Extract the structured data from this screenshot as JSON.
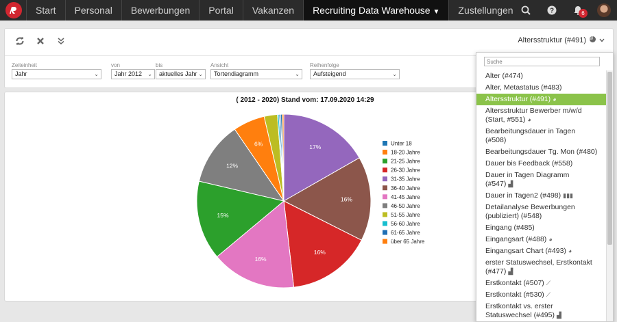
{
  "nav": {
    "items": [
      "Start",
      "Personal",
      "Bewerbungen",
      "Portal",
      "Vakanzen",
      "Recruiting Data Warehouse",
      "Zustellungen"
    ],
    "active_index": 5,
    "notification_count": "6"
  },
  "toolbar": {
    "view_label": "Altersstruktur (#491)"
  },
  "filters": {
    "zeiteinheit": {
      "label": "Zeiteinheit",
      "value": "Jahr"
    },
    "von": {
      "label": "von",
      "value": "Jahr 2012"
    },
    "bis": {
      "label": "bis",
      "value": "aktuelles Jahr"
    },
    "ansicht": {
      "label": "Ansicht",
      "value": "Tortendiagramm"
    },
    "reihenfolge": {
      "label": "Reihenfolge",
      "value": "Aufsteigend"
    }
  },
  "chart_data": {
    "type": "pie",
    "title": "( 2012 - 2020) Stand vom: 17.09.2020 14:29",
    "slices": [
      {
        "label": "Unter 18",
        "value": 0.3,
        "color": "#1f77b4",
        "shown": ""
      },
      {
        "label": "18-20 Jahre",
        "value": 0.3,
        "color": "#ff7f0e",
        "shown": ""
      },
      {
        "label": "21-25 Jahre",
        "value": 15,
        "color": "#2ca02c",
        "shown": "15%"
      },
      {
        "label": "26-30 Jahre",
        "value": 16,
        "color": "#d62728",
        "shown": "16%"
      },
      {
        "label": "31-35 Jahre",
        "value": 17,
        "color": "#9467bd",
        "shown": "17%"
      },
      {
        "label": "36-40 Jahre",
        "value": 16,
        "color": "#8c564b",
        "shown": "16%"
      },
      {
        "label": "41-45 Jahre",
        "value": 16,
        "color": "#e377c2",
        "shown": "16%"
      },
      {
        "label": "46-50 Jahre",
        "value": 12,
        "color": "#7f7f7f",
        "shown": "12%"
      },
      {
        "label": "51-55 Jahre",
        "value": 2.5,
        "color": "#bcbd22",
        "shown": ""
      },
      {
        "label": "56-60 Jahre",
        "value": 0.3,
        "color": "#17becf",
        "shown": ""
      },
      {
        "label": "61-65 Jahre",
        "value": 0.3,
        "color": "#1f6fb4",
        "shown": ""
      },
      {
        "label": "über 65 Jahre",
        "value": 6,
        "color": "#ff7f0e",
        "shown": "6%"
      }
    ],
    "draw_order": [
      4,
      5,
      3,
      6,
      2,
      7,
      11,
      8,
      9,
      10,
      0,
      1
    ]
  },
  "dropdown": {
    "search_placeholder": "Suche",
    "items": [
      {
        "label": "Alter (#474)",
        "icon": ""
      },
      {
        "label": "Alter, Metastatus (#483)",
        "icon": ""
      },
      {
        "label": "Altersstruktur (#491)",
        "icon": "pie-icon",
        "selected": true
      },
      {
        "label": "Altersstruktur Bewerber m/w/d (Start, #551)",
        "icon": "pie-icon"
      },
      {
        "label": "Bearbeitungsdauer in Tagen (#508)",
        "icon": ""
      },
      {
        "label": "Bearbeitungsdauer Tg. Mon (#480)",
        "icon": ""
      },
      {
        "label": "Dauer bis Feedback (#558)",
        "icon": ""
      },
      {
        "label": "Dauer in Tagen Diagramm (#547)",
        "icon": "area-icon"
      },
      {
        "label": "Dauer in Tagen2 (#498)",
        "icon": "bar-icon"
      },
      {
        "label": "Detailanalyse Bewerbungen (publiziert) (#548)",
        "icon": ""
      },
      {
        "label": "Eingang (#485)",
        "icon": ""
      },
      {
        "label": "Eingangsart (#488)",
        "icon": "pie-icon"
      },
      {
        "label": "Eingangsart Chart (#493)",
        "icon": "pie-icon"
      },
      {
        "label": "erster Statuswechsel, Erstkontakt (#477)",
        "icon": "area-icon"
      },
      {
        "label": "Erstkontakt (#507)",
        "icon": "line-icon"
      },
      {
        "label": "Erstkontakt (#530)",
        "icon": "line-icon"
      },
      {
        "label": "Erstkontakt vs. erster Statuswechsel (#495)",
        "icon": "area-icon"
      }
    ]
  }
}
